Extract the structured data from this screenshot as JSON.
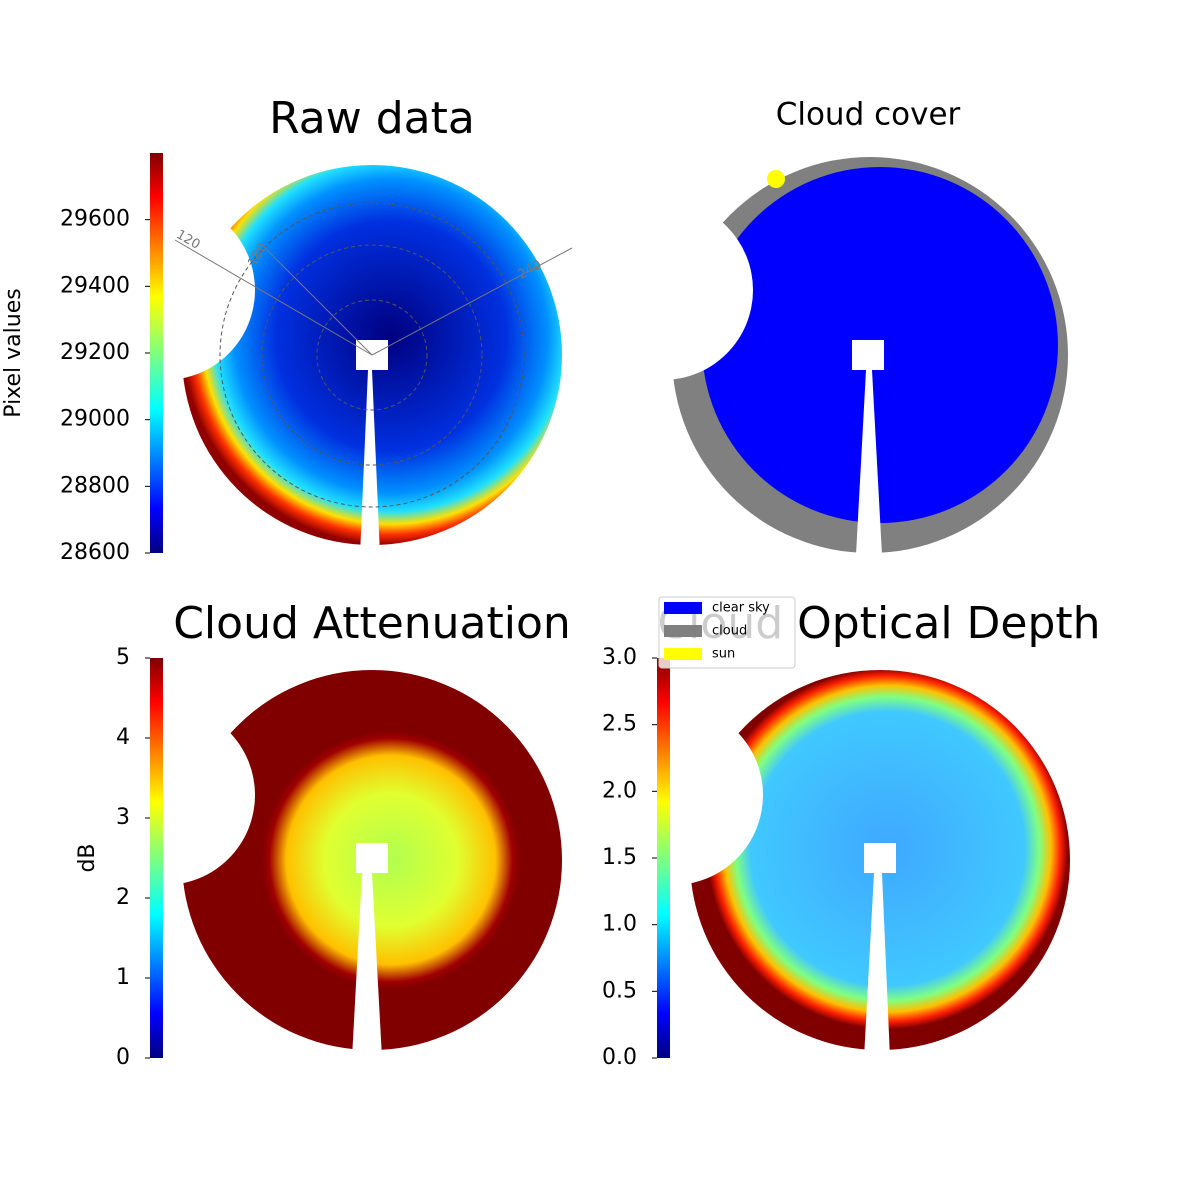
{
  "chart_data": [
    {
      "type": "image",
      "title": "Raw data",
      "colormap": "jet",
      "colorbar_label": "Pixel values",
      "ylim": [
        28600,
        29800
      ],
      "yticks": [
        28600,
        28800,
        29000,
        29200,
        29400,
        29600
      ],
      "azimuth_labels": [
        "120",
        "180",
        "240"
      ]
    },
    {
      "type": "image",
      "title": "Cloud cover",
      "series": [
        {
          "name": "clear sky",
          "color": "#0000ff"
        },
        {
          "name": "cloud",
          "color": "#808080"
        },
        {
          "name": "sun",
          "color": "#ffff00"
        }
      ]
    },
    {
      "type": "image",
      "title": "Cloud Attenuation",
      "colormap": "jet",
      "colorbar_label": "dB",
      "ylim": [
        0,
        5
      ],
      "yticks": [
        0,
        1,
        2,
        3,
        4,
        5
      ]
    },
    {
      "type": "image",
      "title": "Cloud Optical Depth",
      "colormap": "jet",
      "ylim": [
        0,
        3
      ],
      "yticks": [
        {
          "value": 0,
          "label": "0.0"
        },
        {
          "value": 0.5,
          "label": "0.5"
        },
        {
          "value": 1,
          "label": "1.0"
        },
        {
          "value": 1.5,
          "label": "1.5"
        },
        {
          "value": 2,
          "label": "2.0"
        },
        {
          "value": 2.5,
          "label": "2.5"
        },
        {
          "value": 3,
          "label": "3.0"
        }
      ]
    }
  ]
}
